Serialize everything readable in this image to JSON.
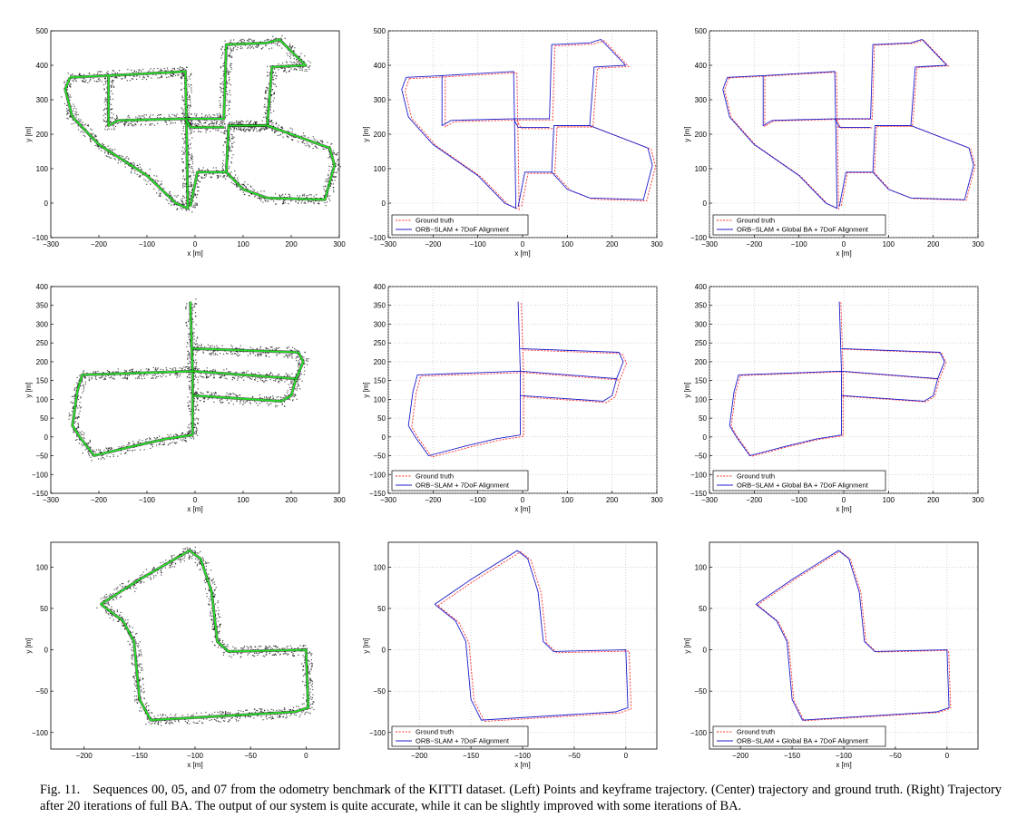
{
  "figure": {
    "caption_label": "Fig. 11.",
    "caption_text": "Sequences 00, 05, and 07 from the odometry benchmark of the KITTI dataset. (Left) Points and keyframe trajectory. (Center) trajectory and ground truth. (Right) Trajectory after 20 iterations of full BA. The output of our system is quite accurate, while it can be slightly improved with some iterations of BA."
  },
  "colors": {
    "ground_truth": "#ff2a2a",
    "estimate": "#1c1ccc",
    "keyframe": "#22dd22",
    "points": "#111111",
    "grid": "#b8b8b8"
  },
  "rows": [
    {
      "sequence": "00",
      "xticks": [
        -300,
        -200,
        -100,
        0,
        100,
        200,
        300
      ],
      "yticks": [
        -100,
        0,
        100,
        200,
        300,
        400,
        500
      ],
      "xlim": [
        -300,
        300
      ],
      "ylim": [
        -100,
        500
      ],
      "xlabel": "x [m]",
      "ylabel": "y [m]",
      "center_legend": [
        "Ground truth",
        "ORB−SLAM + 7DoF Alignment"
      ],
      "right_legend": [
        "Ground truth",
        "ORB−SLAM + Global BA + 7DoF Alignment"
      ],
      "chart_data": {
        "type": "line",
        "segments": [
          [
            [
              -260,
              365
            ],
            [
              -180,
              370
            ],
            [
              -20,
              382
            ],
            [
              -18,
              245
            ],
            [
              -160,
              240
            ],
            [
              -180,
              225
            ],
            [
              -180,
              370
            ]
          ],
          [
            [
              -260,
              365
            ],
            [
              -270,
              330
            ],
            [
              -255,
              250
            ],
            [
              -200,
              170
            ],
            [
              -100,
              80
            ],
            [
              -40,
              0
            ],
            [
              -15,
              -15
            ],
            [
              -18,
              245
            ],
            [
              60,
              245
            ],
            [
              65,
              460
            ],
            [
              150,
              465
            ],
            [
              175,
              475
            ],
            [
              230,
              400
            ],
            [
              160,
              395
            ],
            [
              150,
              225
            ],
            [
              70,
              225
            ],
            [
              65,
              90
            ],
            [
              5,
              90
            ],
            [
              -10,
              -10
            ]
          ],
          [
            [
              70,
              225
            ],
            [
              150,
              225
            ],
            [
              280,
              160
            ],
            [
              290,
              110
            ],
            [
              270,
              10
            ],
            [
              150,
              15
            ],
            [
              100,
              40
            ],
            [
              65,
              90
            ]
          ],
          [
            [
              -20,
              245
            ],
            [
              -10,
              220
            ],
            [
              60,
              220
            ]
          ]
        ],
        "series": [
          {
            "name": "Ground truth"
          },
          {
            "name": "ORB−SLAM + 7DoF Alignment"
          }
        ]
      }
    },
    {
      "sequence": "05",
      "xticks": [
        -300,
        -200,
        -100,
        0,
        100,
        200,
        300
      ],
      "yticks": [
        -150,
        -100,
        -50,
        0,
        50,
        100,
        150,
        200,
        250,
        300,
        350,
        400
      ],
      "xlim": [
        -300,
        300
      ],
      "ylim": [
        -150,
        400
      ],
      "xlabel": "x [m]",
      "ylabel": "y [m]",
      "center_legend": [
        "Ground truth",
        "ORB−SLAM + 7DoF Alignment"
      ],
      "right_legend": [
        "Ground truth",
        "ORB−SLAM + Global BA + 7DoF Alignment"
      ],
      "chart_data": {
        "type": "line",
        "segments": [
          [
            [
              -10,
              360
            ],
            [
              -5,
              175
            ],
            [
              -5,
              5
            ]
          ],
          [
            [
              -5,
              5
            ],
            [
              -60,
              -5
            ],
            [
              -130,
              -25
            ],
            [
              -210,
              -50
            ],
            [
              -240,
              0
            ],
            [
              -255,
              30
            ],
            [
              -245,
              120
            ],
            [
              -235,
              165
            ],
            [
              -5,
              175
            ],
            [
              210,
              155
            ],
            [
              225,
              200
            ],
            [
              215,
              225
            ],
            [
              -5,
              235
            ]
          ],
          [
            [
              -5,
              110
            ],
            [
              180,
              95
            ],
            [
              200,
              110
            ],
            [
              210,
              155
            ]
          ]
        ],
        "series": [
          {
            "name": "Ground truth"
          },
          {
            "name": "ORB−SLAM + 7DoF Alignment"
          }
        ]
      }
    },
    {
      "sequence": "07",
      "xticks": [
        -200,
        -150,
        -100,
        -50,
        0
      ],
      "yticks": [
        -100,
        -50,
        0,
        50,
        100
      ],
      "xlim": [
        -230,
        30
      ],
      "ylim": [
        -120,
        130
      ],
      "xlabel": "x [m]",
      "ylabel": "y [m]",
      "center_legend": [
        "Ground truth",
        "ORB−SLAM + 7DoF Alignment"
      ],
      "right_legend": [
        "Ground truth",
        "ORB−SLAM + Global BA + 7DoF Alignment"
      ],
      "chart_data": {
        "type": "line",
        "segments": [
          [
            [
              -185,
              55
            ],
            [
              -150,
              85
            ],
            [
              -105,
              120
            ],
            [
              -95,
              110
            ],
            [
              -85,
              70
            ],
            [
              -80,
              10
            ],
            [
              -70,
              -2
            ],
            [
              0,
              0
            ],
            [
              2,
              -70
            ],
            [
              -10,
              -75
            ],
            [
              -140,
              -85
            ],
            [
              -150,
              -60
            ],
            [
              -155,
              10
            ],
            [
              -165,
              35
            ],
            [
              -185,
              55
            ]
          ]
        ],
        "series": [
          {
            "name": "Ground truth"
          },
          {
            "name": "ORB−SLAM + 7DoF Alignment"
          }
        ]
      }
    }
  ]
}
